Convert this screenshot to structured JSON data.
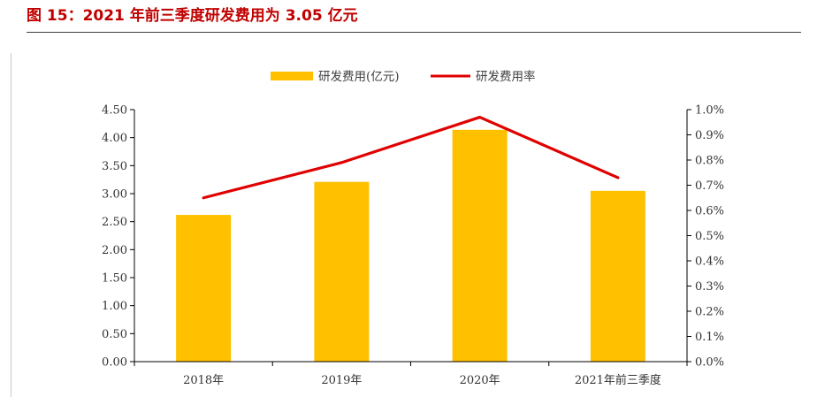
{
  "figure": {
    "title": "图 15：2021 年前三季度研发费用为 3.05 亿元"
  },
  "colors": {
    "bar": "#FFC000",
    "line": "#E00000",
    "axis": "#000000",
    "title": "#C00000"
  },
  "chart_data": {
    "type": "bar",
    "categories": [
      "2018年",
      "2019年",
      "2020年",
      "2021年前三季度"
    ],
    "series": [
      {
        "name": "研发费用(亿元)",
        "type": "bar",
        "axis": "left",
        "values": [
          2.62,
          3.21,
          4.14,
          3.05
        ]
      },
      {
        "name": "研发费用率",
        "type": "line",
        "axis": "right",
        "values": [
          0.65,
          0.79,
          0.97,
          0.73
        ]
      }
    ],
    "y_left": {
      "min": 0,
      "max": 4.5,
      "step": 0.5,
      "tick_labels": [
        "0.00",
        "0.50",
        "1.00",
        "1.50",
        "2.00",
        "2.50",
        "3.00",
        "3.50",
        "4.00",
        "4.50"
      ]
    },
    "y_right": {
      "min": 0,
      "max": 1.0,
      "step": 0.1,
      "unit": "%",
      "tick_labels": [
        "0.0%",
        "0.1%",
        "0.2%",
        "0.3%",
        "0.4%",
        "0.5%",
        "0.6%",
        "0.7%",
        "0.8%",
        "0.9%",
        "1.0%"
      ]
    },
    "legend": {
      "position": "top-center"
    },
    "grid": false
  }
}
